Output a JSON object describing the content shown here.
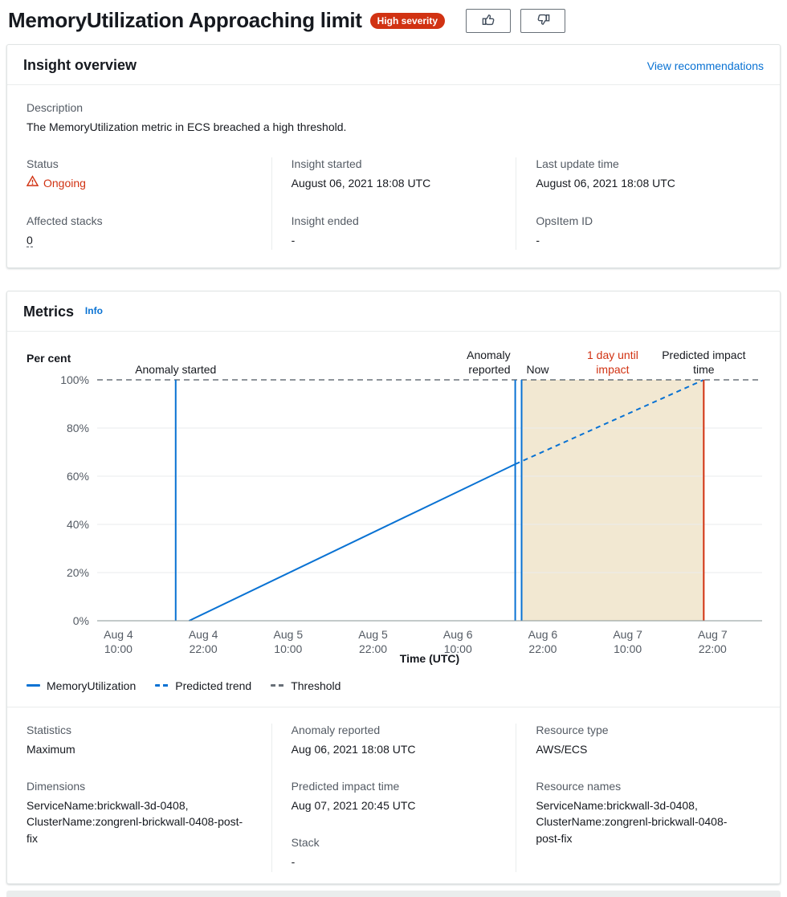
{
  "header": {
    "title": "MemoryUtilization Approaching limit",
    "severity_badge": "High severity"
  },
  "icons": {
    "thumbs_up": "thumbs-up-icon",
    "thumbs_down": "thumbs-down-icon",
    "status_warning": "warning-icon"
  },
  "overview": {
    "title": "Insight overview",
    "view_recommendations": "View recommendations",
    "description_label": "Description",
    "description": "The MemoryUtilization metric in ECS breached a high threshold.",
    "status_label": "Status",
    "status_value": "Ongoing",
    "affected_stacks_label": "Affected stacks",
    "affected_stacks_value": "0",
    "insight_started_label": "Insight started",
    "insight_started_value": "August 06, 2021 18:08 UTC",
    "insight_ended_label": "Insight ended",
    "insight_ended_value": "-",
    "last_update_label": "Last update time",
    "last_update_value": "August 06, 2021 18:08 UTC",
    "opsitem_label": "OpsItem ID",
    "opsitem_value": "-"
  },
  "metrics": {
    "title": "Metrics",
    "info_link": "Info",
    "legend": [
      {
        "label": "MemoryUtilization",
        "style": "solid",
        "color": "#0972d3"
      },
      {
        "label": "Predicted trend",
        "style": "dashed",
        "color": "#0972d3"
      },
      {
        "label": "Threshold",
        "style": "dashed",
        "color": "#687078"
      }
    ],
    "details": {
      "statistics_label": "Statistics",
      "statistics_value": "Maximum",
      "dimensions_label": "Dimensions",
      "dimensions_value": "ServiceName:brickwall-3d-0408, ClusterName:zongrenl-brickwall-0408-post-fix",
      "anomaly_reported_label": "Anomaly reported",
      "anomaly_reported_value": "Aug 06, 2021 18:08 UTC",
      "predicted_impact_label": "Predicted impact time",
      "predicted_impact_value": "Aug 07, 2021 20:45 UTC",
      "stack_label": "Stack",
      "stack_value": "-",
      "resource_type_label": "Resource type",
      "resource_type_value": "AWS/ECS",
      "resource_names_label": "Resource names",
      "resource_names_value": "ServiceName:brickwall-3d-0408, ClusterName:zongrenl-brickwall-0408-post-fix"
    }
  },
  "chart_data": {
    "type": "line",
    "ylabel": "Per cent",
    "xlabel": "Time (UTC)",
    "ylim": [
      0,
      100
    ],
    "y_ticks": [
      0,
      20,
      40,
      60,
      80,
      100
    ],
    "x_unit": "hours since Aug 4 10:00 UTC",
    "x_domain": [
      -3,
      91
    ],
    "x_ticks": [
      {
        "t": 0,
        "label": [
          "Aug 4",
          "10:00"
        ]
      },
      {
        "t": 12,
        "label": [
          "Aug 4",
          "22:00"
        ]
      },
      {
        "t": 24,
        "label": [
          "Aug 5",
          "10:00"
        ]
      },
      {
        "t": 36,
        "label": [
          "Aug 5",
          "22:00"
        ]
      },
      {
        "t": 48,
        "label": [
          "Aug 6",
          "10:00"
        ]
      },
      {
        "t": 60,
        "label": [
          "Aug 6",
          "22:00"
        ]
      },
      {
        "t": 72,
        "label": [
          "Aug 7",
          "10:00"
        ]
      },
      {
        "t": 84,
        "label": [
          "Aug 7",
          "22:00"
        ]
      }
    ],
    "series": [
      {
        "name": "MemoryUtilization",
        "style": "solid",
        "color": "#0972d3",
        "points": [
          [
            10,
            0
          ],
          [
            56.1,
            65
          ]
        ]
      },
      {
        "name": "Predicted trend",
        "style": "dashed",
        "color": "#0972d3",
        "points": [
          [
            56.1,
            65
          ],
          [
            82.75,
            100
          ]
        ]
      }
    ],
    "threshold": {
      "name": "Threshold",
      "value": 100,
      "color": "#687078"
    },
    "markers": [
      {
        "name": "anomaly-started",
        "t": 8.1,
        "color": "#0972d3",
        "label": [
          "Anomaly started"
        ],
        "label_anchor": "middle",
        "label_color": "#16191f"
      },
      {
        "name": "anomaly-reported",
        "t": 56.1,
        "color": "#0972d3",
        "label": [
          "Anomaly",
          "reported"
        ],
        "label_anchor": "end",
        "label_color": "#16191f"
      },
      {
        "name": "now",
        "t": 57.0,
        "color": "#0972d3",
        "label": [
          "",
          "Now"
        ],
        "label_anchor": "start",
        "label_color": "#16191f"
      },
      {
        "name": "predicted-impact-time",
        "t": 82.75,
        "color": "#d13212",
        "label": [
          "Predicted impact",
          "time"
        ],
        "label_anchor": "middle",
        "label_color": "#16191f"
      }
    ],
    "impact_window": {
      "from": 57.0,
      "to": 82.75,
      "fill": "#f2e8d2",
      "label": [
        "1 day until",
        "impact"
      ],
      "label_color": "#d13212"
    }
  }
}
